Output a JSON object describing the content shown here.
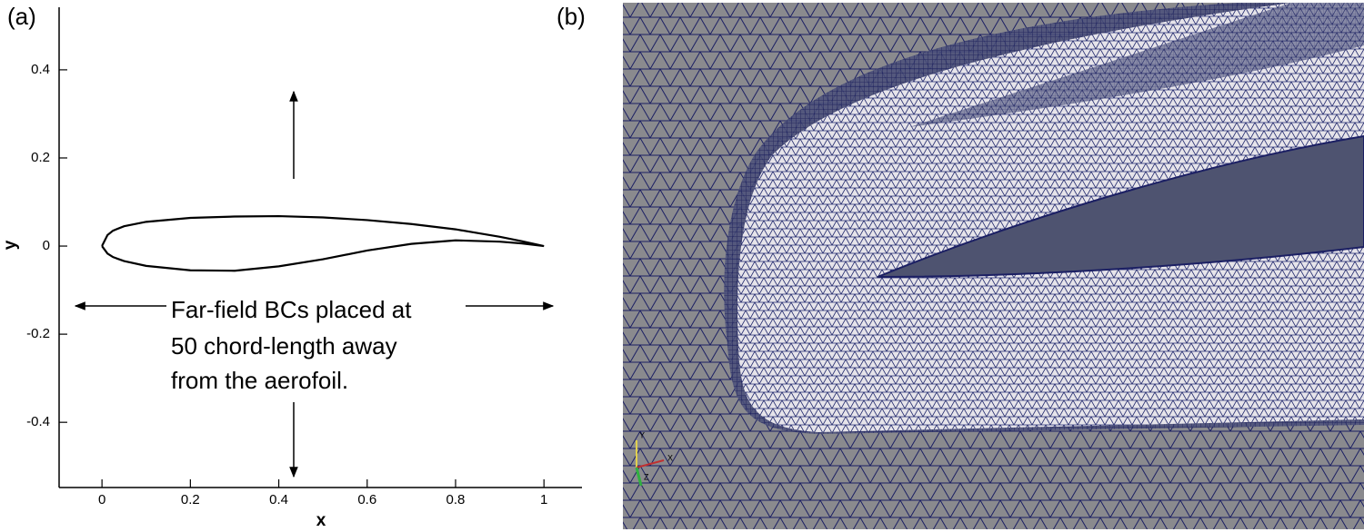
{
  "chart_data": {
    "type": "line",
    "panel_label": "(a)",
    "xlabel": "x",
    "ylabel": "y",
    "x": [
      0,
      0.0125,
      0.025,
      0.05,
      0.1,
      0.2,
      0.3,
      0.4,
      0.5,
      0.6,
      0.7,
      0.8,
      0.9,
      0.95,
      1.0,
      0.95,
      0.9,
      0.8,
      0.7,
      0.6,
      0.5,
      0.4,
      0.3,
      0.2,
      0.1,
      0.05,
      0.025,
      0.0125,
      0
    ],
    "series": [
      {
        "color": "#000000",
        "values": [
          0,
          0.025,
          0.035,
          0.045,
          0.055,
          0.064,
          0.067,
          0.068,
          0.065,
          0.059,
          0.05,
          0.038,
          0.021,
          0.011,
          0.0,
          0.006,
          0.01,
          0.013,
          0.005,
          -0.01,
          -0.03,
          -0.046,
          -0.056,
          -0.055,
          -0.045,
          -0.034,
          -0.025,
          -0.017,
          0
        ]
      }
    ],
    "xlim": [
      -0.097,
      1.086
    ],
    "ylim": [
      -0.548,
      0.542
    ],
    "xticks": [
      0,
      0.2,
      0.4,
      0.6,
      0.8,
      1
    ],
    "yticks": [
      -0.4,
      -0.2,
      0,
      0.2,
      0.4
    ],
    "annotation": [
      "Far-field BCs placed at",
      "50 chord-length away",
      "from the aerofoil."
    ]
  },
  "panel_b": {
    "label": "(b)",
    "triad": [
      "Y",
      "X",
      "Z"
    ]
  }
}
